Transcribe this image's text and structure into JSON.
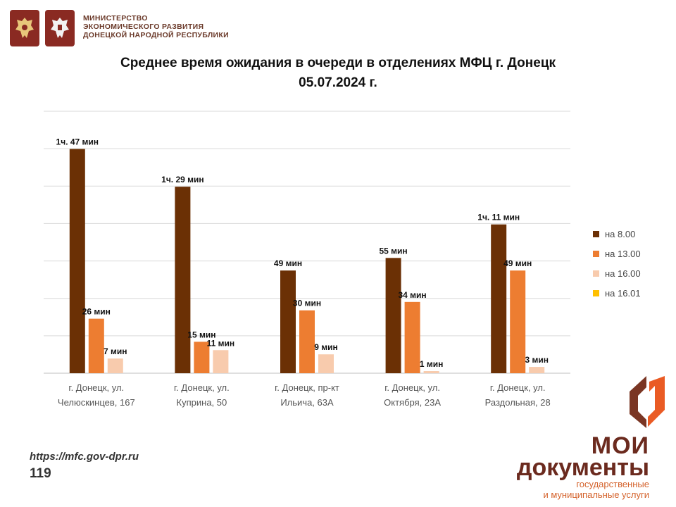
{
  "header": {
    "ministry_lines": [
      "МИНИСТЕРСТВО",
      "ЭКОНОМИЧЕСКОГО РАЗВИТИЯ",
      "ДОНЕЦКОЙ НАРОДНОЙ РЕСПУБЛИКИ"
    ]
  },
  "title": {
    "line1": "Среднее время ожидания в очереди в отделениях МФЦ г. Донецк",
    "line2": "05.07.2024 г."
  },
  "chart_data": {
    "type": "bar",
    "title": "Среднее время ожидания в очереди в отделениях МФЦ г. Донецк 05.07.2024 г.",
    "categories": [
      [
        "г. Донецк, ул.",
        "Челюскинцев, 167"
      ],
      [
        "г. Донецк, ул.",
        "Куприна, 50"
      ],
      [
        "г. Донецк, пр-кт",
        "Ильича, 63А"
      ],
      [
        "г. Донецк, ул.",
        "Октября, 23А"
      ],
      [
        "г. Донецк, ул.",
        "Раздольная, 28"
      ]
    ],
    "series": [
      {
        "name": "на 8.00",
        "color": "#6b3005",
        "values": [
          107,
          89,
          49,
          55,
          71
        ],
        "labels": [
          "1ч. 47 мин",
          "1ч. 29 мин",
          "49 мин",
          "55 мин",
          "1ч. 11 мин"
        ]
      },
      {
        "name": "на 13.00",
        "color": "#ed7d31",
        "values": [
          26,
          15,
          30,
          34,
          49
        ],
        "labels": [
          "26 мин",
          "15 мин",
          "30 мин",
          "34 мин",
          "49 мин"
        ]
      },
      {
        "name": "на 16.00",
        "color": "#f8cbad",
        "values": [
          7,
          11,
          9,
          1,
          3
        ],
        "labels": [
          "7 мин",
          "11 мин",
          "9 мин",
          "1 мин",
          "3 мин"
        ]
      },
      {
        "name": "на 16.01",
        "color": "#ffc000",
        "values": [
          0,
          0,
          0,
          0,
          0
        ],
        "labels": [
          "",
          "",
          "",
          "",
          ""
        ]
      }
    ],
    "grid": true,
    "legend_position": "right"
  },
  "footer": {
    "url": "https://mfc.gov-dpr.ru",
    "page_number": "119"
  },
  "brand": {
    "line1": "МОИ",
    "line2": "документы",
    "sub1": "государственные",
    "sub2": "и муниципальные услуги"
  }
}
